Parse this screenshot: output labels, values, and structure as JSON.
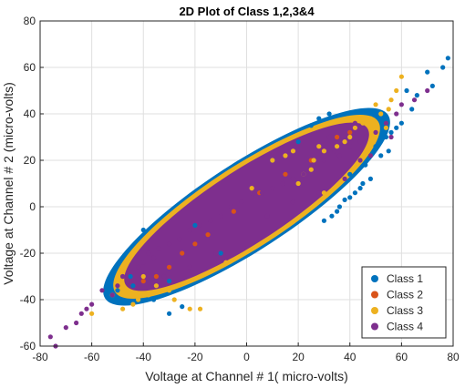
{
  "chart_data": {
    "type": "scatter",
    "title": "2D Plot of Class 1,2,3&4",
    "xlabel": "Voltage at Channel # 1( micro-volts)",
    "ylabel": "Voltage at Channel # 2 (micro-volts)",
    "xlim": [
      -80,
      80
    ],
    "ylim": [
      -60,
      80
    ],
    "xticks": [
      "-80",
      "-60",
      "-40",
      "-20",
      "0",
      "20",
      "40",
      "60",
      "80"
    ],
    "yticks": [
      "-60",
      "-40",
      "-20",
      "0",
      "20",
      "40",
      "60",
      "80"
    ],
    "grid": true,
    "legend_position": "bottom-right",
    "series": [
      {
        "name": "Class 1",
        "color": "#0072BD",
        "x": [
          78,
          76,
          72,
          70,
          66,
          64,
          62,
          60,
          58,
          56,
          54,
          52,
          50,
          48,
          45,
          44,
          42,
          40,
          38,
          36,
          30,
          33,
          35,
          -48,
          -44,
          -50,
          -40,
          -36,
          -30,
          -25,
          -20,
          -45,
          20,
          25,
          28,
          32,
          10,
          -10,
          -30,
          40,
          46,
          55
        ],
        "y": [
          64,
          60,
          52,
          58,
          48,
          42,
          50,
          36,
          34,
          32,
          30,
          22,
          26,
          12,
          10,
          8,
          6,
          4,
          3,
          0,
          -6,
          -4,
          -2,
          -30,
          -34,
          -36,
          -10,
          -40,
          -46,
          -43,
          -8,
          -30,
          28,
          35,
          38,
          40,
          20,
          -20,
          -32,
          14,
          18,
          24
        ]
      },
      {
        "name": "Class 2",
        "color": "#D95319",
        "x": [
          -35,
          -30,
          -25,
          -20,
          -15,
          -5,
          5,
          15,
          25,
          35,
          40,
          -40
        ],
        "y": [
          -30,
          -26,
          -20,
          -16,
          -12,
          -2,
          6,
          14,
          20,
          30,
          32,
          -32
        ]
      },
      {
        "name": "Class 3",
        "color": "#EDB120",
        "x": [
          60,
          58,
          56,
          55,
          52,
          50,
          48,
          45,
          42,
          40,
          38,
          35,
          30,
          28,
          26,
          25,
          22,
          20,
          -44,
          -42,
          -38,
          -40,
          -35,
          -30,
          -28,
          -22,
          -18,
          10,
          15,
          18,
          -60,
          -52,
          -48,
          54,
          50,
          30,
          2,
          -8
        ],
        "y": [
          56,
          50,
          46,
          42,
          40,
          44,
          38,
          36,
          34,
          30,
          28,
          26,
          24,
          26,
          20,
          16,
          14,
          10,
          -42,
          -40,
          -38,
          -30,
          -34,
          -36,
          -40,
          -44,
          -44,
          20,
          22,
          24,
          -46,
          -38,
          -44,
          34,
          30,
          6,
          8,
          -24
        ]
      },
      {
        "name": "Class 4",
        "color": "#7E2F8E",
        "x": [
          -76,
          -74,
          -70,
          -66,
          -64,
          -62,
          -60,
          -56,
          -52,
          -50,
          -48,
          -46,
          -44,
          -42,
          -40,
          -38,
          -36,
          -34,
          -30,
          -26,
          -22,
          -18,
          -14,
          -10,
          -6,
          -2,
          2,
          6,
          10,
          14,
          18,
          22,
          26,
          30,
          34,
          36,
          40,
          44,
          46,
          50,
          54,
          58,
          60,
          65,
          70,
          48,
          38,
          28,
          18,
          8,
          -12,
          -22,
          -32,
          42,
          32,
          44,
          56
        ],
        "y": [
          -56,
          -60,
          -52,
          -50,
          -46,
          -44,
          -42,
          -36,
          -38,
          -34,
          -30,
          -32,
          -28,
          -26,
          -24,
          -20,
          -22,
          -18,
          -16,
          -14,
          -10,
          -8,
          -6,
          -4,
          0,
          2,
          4,
          6,
          8,
          10,
          12,
          14,
          18,
          20,
          24,
          22,
          26,
          28,
          30,
          32,
          36,
          40,
          44,
          46,
          50,
          22,
          12,
          6,
          2,
          -4,
          -20,
          -26,
          -30,
          36,
          30,
          20,
          30
        ]
      }
    ]
  }
}
